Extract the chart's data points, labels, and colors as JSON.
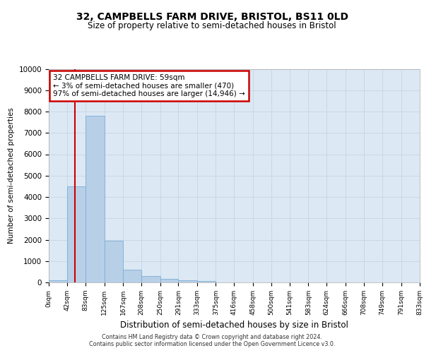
{
  "title_line1": "32, CAMPBELLS FARM DRIVE, BRISTOL, BS11 0LD",
  "title_line2": "Size of property relative to semi-detached houses in Bristol",
  "xlabel": "Distribution of semi-detached houses by size in Bristol",
  "ylabel": "Number of semi-detached properties",
  "footer_line1": "Contains HM Land Registry data © Crown copyright and database right 2024.",
  "footer_line2": "Contains public sector information licensed under the Open Government Licence v3.0.",
  "annotation_title": "32 CAMPBELLS FARM DRIVE: 59sqm",
  "annotation_line1": "← 3% of semi-detached houses are smaller (470)",
  "annotation_line2": "97% of semi-detached houses are larger (14,946) →",
  "property_size_sqm": 59,
  "bin_edges_values": [
    0,
    42,
    83,
    125,
    167,
    208,
    250,
    291,
    333,
    375,
    416,
    458,
    500,
    541,
    583,
    624,
    666,
    708,
    749,
    791,
    833
  ],
  "bin_labels": [
    "0sqm",
    "42sqm",
    "83sqm",
    "125sqm",
    "167sqm",
    "208sqm",
    "250sqm",
    "291sqm",
    "333sqm",
    "375sqm",
    "416sqm",
    "458sqm",
    "500sqm",
    "541sqm",
    "583sqm",
    "624sqm",
    "666sqm",
    "708sqm",
    "749sqm",
    "791sqm",
    "833sqm"
  ],
  "bar_heights": [
    100,
    4500,
    7800,
    1950,
    600,
    300,
    150,
    100,
    50,
    0,
    0,
    0,
    0,
    0,
    0,
    0,
    0,
    0,
    0,
    0
  ],
  "bar_color": "#b8cfe8",
  "bar_edge_color": "#7bafd4",
  "vline_color": "#cc0000",
  "annotation_box_color": "#cc0000",
  "ylim": [
    0,
    10000
  ],
  "yticks": [
    0,
    1000,
    2000,
    3000,
    4000,
    5000,
    6000,
    7000,
    8000,
    9000,
    10000
  ],
  "grid_color": "#c8d8e8",
  "plot_bg_color": "#dce8f4"
}
